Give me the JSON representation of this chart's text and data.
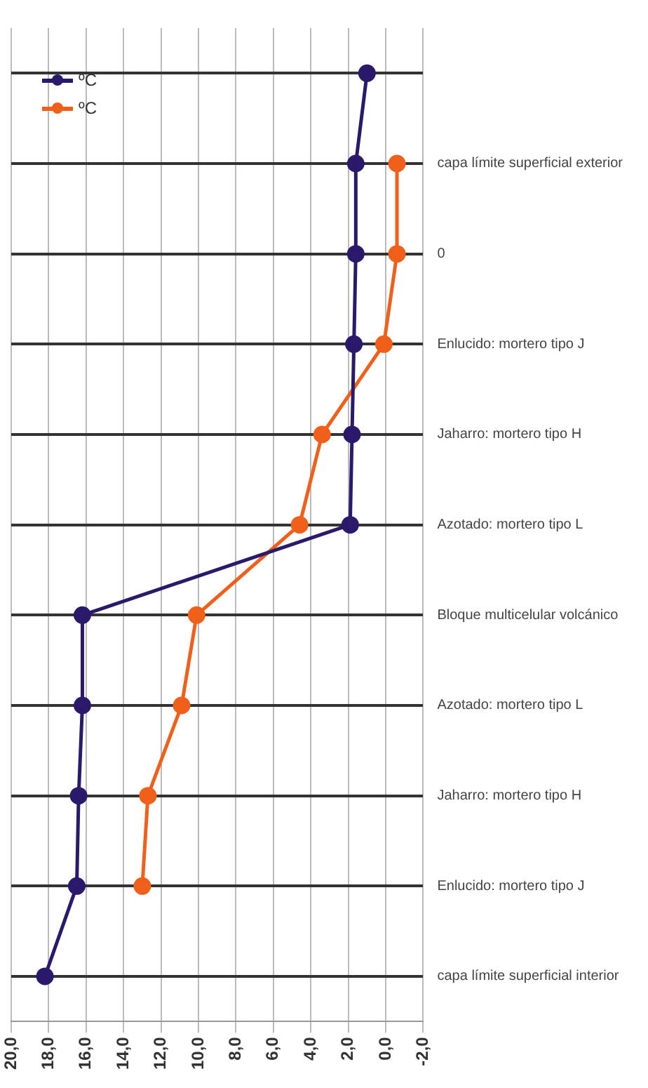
{
  "chart_data": {
    "type": "line",
    "orientation": "horizontal",
    "categories": [
      null,
      "capa límite superficial exterior",
      "0",
      "Enlucido: mortero tipo J",
      "Jaharro: mortero tipo H",
      "Azotado: mortero tipo L",
      "Bloque multicelular volcánico",
      "Azotado: mortero tipo L",
      "Jaharro: mortero tipo H",
      "Enlucido: mortero tipo J",
      "capa límite superficial interior"
    ],
    "series": [
      {
        "name": "ºC",
        "color": "#2b1a6b",
        "values": [
          1.0,
          1.6,
          1.6,
          1.7,
          1.8,
          1.9,
          16.2,
          16.2,
          16.4,
          16.5,
          18.2
        ]
      },
      {
        "name": "ºC",
        "color": "#f0601a",
        "values": [
          null,
          -0.6,
          -0.6,
          0.1,
          3.4,
          4.6,
          10.1,
          10.9,
          12.7,
          13.0,
          null
        ]
      }
    ],
    "xlim": [
      20,
      -2
    ],
    "xticks": [
      {
        "value": 20,
        "label": "20,0"
      },
      {
        "value": 18,
        "label": "18,0"
      },
      {
        "value": 16,
        "label": "16,0"
      },
      {
        "value": 14,
        "label": "14,0"
      },
      {
        "value": 12,
        "label": "12,0"
      },
      {
        "value": 10,
        "label": "10,0"
      },
      {
        "value": 8,
        "label": "8,0"
      },
      {
        "value": 6,
        "label": "6,0"
      },
      {
        "value": 4,
        "label": "4,0"
      },
      {
        "value": 2,
        "label": "2,0"
      },
      {
        "value": 0,
        "label": "0,0"
      },
      {
        "value": -2,
        "label": "-2,0"
      }
    ],
    "grid": true,
    "legend": "top left",
    "marker": "circle"
  }
}
